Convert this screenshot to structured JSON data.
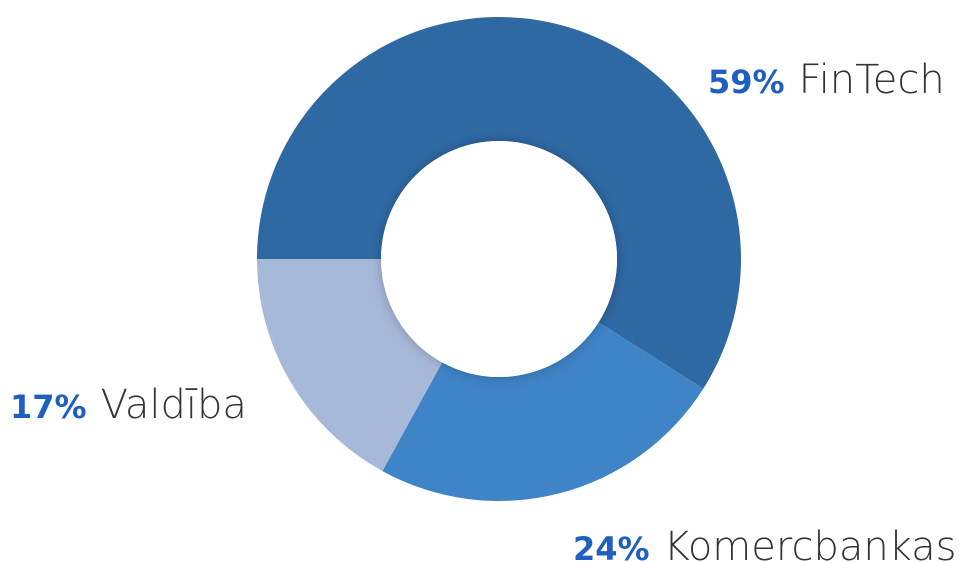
{
  "chart_data": {
    "type": "donut",
    "categories": [
      "FinTech",
      "Komercbankas",
      "Valdība"
    ],
    "values": [
      59,
      24,
      17
    ],
    "value_labels": [
      "59%",
      "24%",
      "17%"
    ],
    "colors": [
      "#2f69a4",
      "#3f84c7",
      "#a7b9d9"
    ]
  }
}
